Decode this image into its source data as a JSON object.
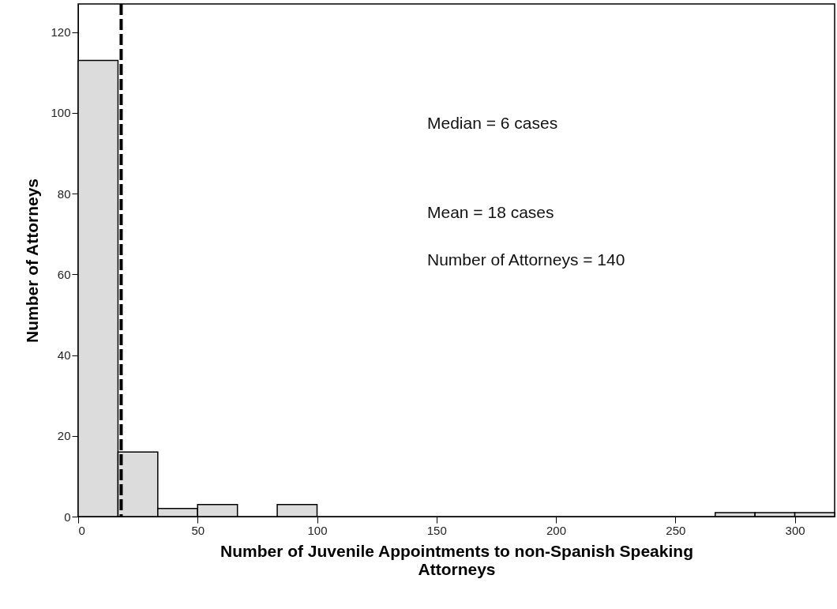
{
  "chart_data": {
    "type": "histogram",
    "xlabel": "Number of Juvenile Appointments to non-Spanish Speaking Attorneys",
    "ylabel": "Number of Attorneys",
    "bins": [
      0,
      16.67,
      33.33,
      50,
      66.67,
      83.33,
      100,
      116.67,
      133.33,
      150,
      166.67,
      183.33,
      200,
      216.67,
      233.33,
      250,
      266.67,
      283.33,
      300,
      316.67
    ],
    "values": [
      113,
      16,
      2,
      3,
      0,
      3,
      0,
      0,
      0,
      0,
      0,
      0,
      0,
      0,
      0,
      0,
      1,
      1,
      1
    ],
    "color": "#dcdcdc",
    "xlim": [
      0,
      316.67
    ],
    "xticks": [
      0,
      50,
      100,
      150,
      200,
      250,
      300
    ],
    "ylim": [
      0,
      127
    ],
    "yticks": [
      0,
      20,
      40,
      60,
      80,
      100,
      120
    ],
    "grid": false,
    "ref_lines": [
      {
        "axis": "x",
        "value": 18,
        "color": "#000000",
        "line_style": "dashed"
      }
    ],
    "annotations": [
      "Median = 6 cases",
      "Mean = 18 cases",
      "Number of Attorneys = 140"
    ]
  }
}
